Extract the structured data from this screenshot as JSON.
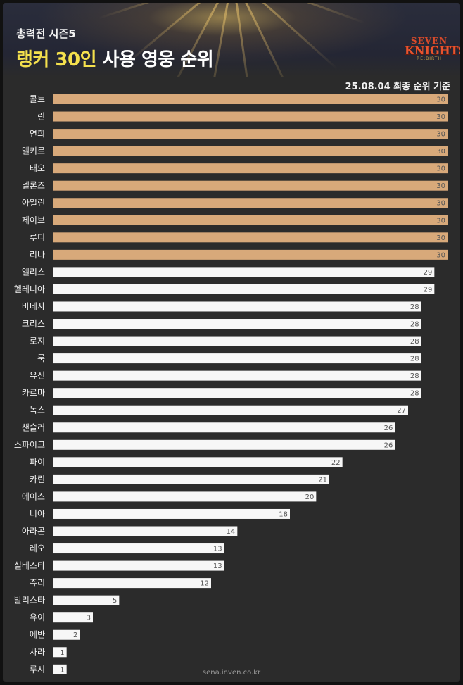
{
  "header": {
    "season": "총력전 시즌5",
    "title_highlight": "랭커 30인",
    "title_rest": "사용 영웅 순위",
    "date_note": "25.08.04 최종 순위 기준",
    "logo_line1": "SEVEN",
    "logo_line2": "KNIGHTS",
    "logo_line3": "RE:BIRTH"
  },
  "footer": {
    "source": "sena.inven.co.kr"
  },
  "colors": {
    "top_bar": "#d8a97a",
    "other_bar": "#f7f7f7",
    "background": "#2b2b2b",
    "highlight": "#f4e04d"
  },
  "chart_data": {
    "type": "bar",
    "orientation": "horizontal",
    "categories": [
      "콜트",
      "린",
      "연희",
      "멜키르",
      "태오",
      "델론즈",
      "아일린",
      "제이브",
      "루디",
      "리나",
      "엘리스",
      "헬레니아",
      "바네사",
      "크리스",
      "로지",
      "룩",
      "유신",
      "카르마",
      "녹스",
      "챈슬러",
      "스파이크",
      "파이",
      "카린",
      "에이스",
      "니아",
      "아라곤",
      "레오",
      "실베스타",
      "쥬리",
      "발리스타",
      "유이",
      "에반",
      "사라",
      "루시"
    ],
    "values": [
      30,
      30,
      30,
      30,
      30,
      30,
      30,
      30,
      30,
      30,
      29,
      29,
      28,
      28,
      28,
      28,
      28,
      28,
      27,
      26,
      26,
      22,
      21,
      20,
      18,
      14,
      13,
      13,
      12,
      5,
      3,
      2,
      1,
      1
    ],
    "xlim": [
      0,
      30
    ],
    "data_labels": true,
    "grid": false,
    "legend": "none"
  }
}
